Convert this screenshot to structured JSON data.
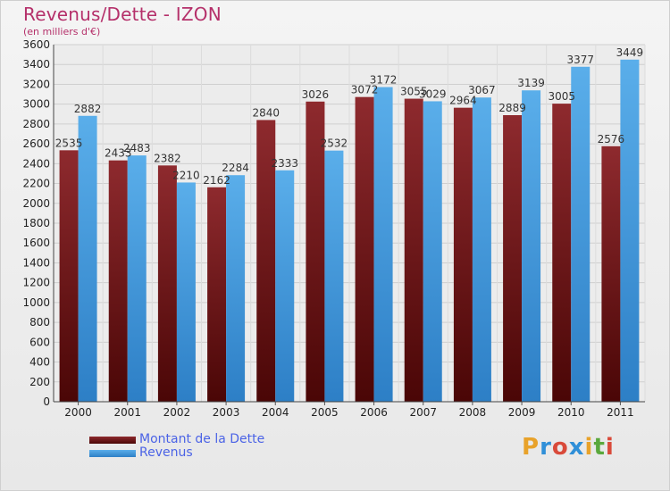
{
  "header": {
    "title": "Revenus/Dette - IZON",
    "subtitle": "(en milliers d'€)"
  },
  "legend": [
    {
      "name": "Montant de la Dette",
      "color": "#7a1f23"
    },
    {
      "name": "Revenus",
      "color": "#4aa3e6"
    }
  ],
  "logo": {
    "letters": [
      "P",
      "r",
      "o",
      "x",
      "i",
      "t",
      "i"
    ],
    "colors": [
      "#e8a22a",
      "#2f8fd8",
      "#d94a3a",
      "#2f8fd8",
      "#e8a22a",
      "#5aa83c",
      "#d94a3a"
    ]
  },
  "chart_data": {
    "type": "bar",
    "categories": [
      "2000",
      "2001",
      "2002",
      "2003",
      "2004",
      "2005",
      "2006",
      "2007",
      "2008",
      "2009",
      "2010",
      "2011"
    ],
    "series": [
      {
        "name": "Montant de la Dette",
        "values": [
          2535,
          2433,
          2382,
          2162,
          2840,
          3026,
          3072,
          3055,
          2964,
          2889,
          3005,
          2576
        ]
      },
      {
        "name": "Revenus",
        "values": [
          2882,
          2483,
          2210,
          2284,
          2333,
          2532,
          3172,
          3029,
          3067,
          3139,
          3377,
          3449
        ]
      }
    ],
    "yticks": [
      0,
      200,
      400,
      600,
      800,
      1000,
      1200,
      1400,
      1600,
      1800,
      2000,
      2200,
      2400,
      2600,
      2800,
      3000,
      3200,
      3400,
      3600
    ],
    "ylim": [
      0,
      3600
    ],
    "grid": true,
    "legend_position": "bottom-left"
  }
}
